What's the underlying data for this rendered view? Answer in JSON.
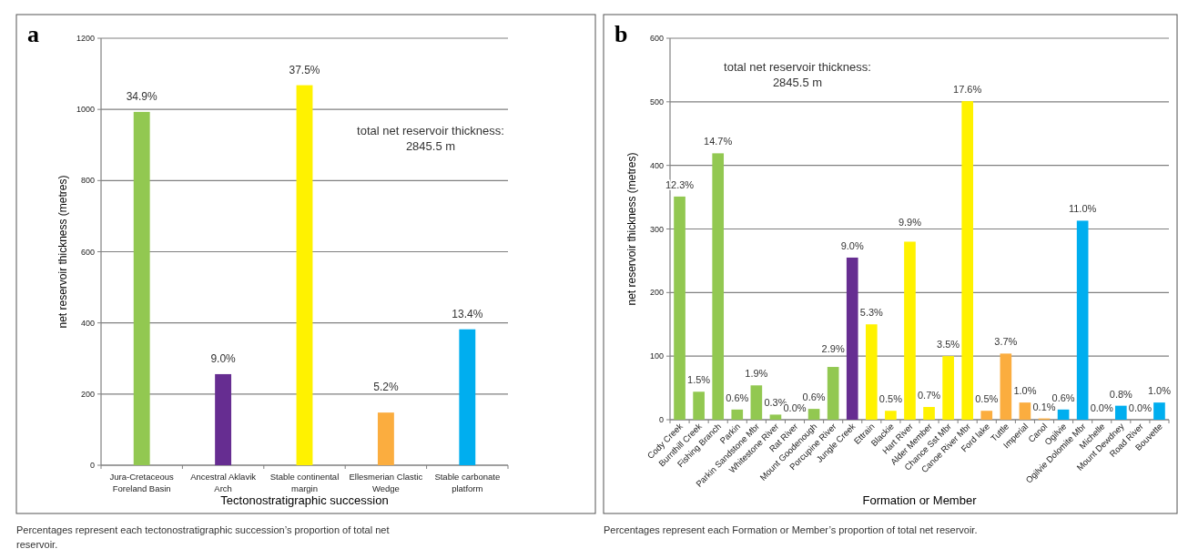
{
  "chart_data": [
    {
      "type": "bar",
      "title": "a",
      "xlabel": "Tectonostratigraphic succession",
      "ylabel": "net reservoir thickness (metres)",
      "categories": [
        "Jura-Cretaceous Foreland Basin",
        "Ancestral Aklavik Arch",
        "Stable continental margin",
        "Ellesmerian Clastic Wedge",
        "Stable carbonate platform"
      ],
      "values": [
        993,
        256,
        1068,
        148,
        382
      ],
      "colors": [
        "#92c851",
        "#662d91",
        "#fff200",
        "#fbad3f",
        "#00aeef"
      ],
      "ylim": [
        0,
        1200
      ],
      "yticks": [
        0,
        200,
        400,
        600,
        800,
        1000,
        1200
      ],
      "grid": "y",
      "annotations": [
        "total net reservoir thickness:\n2845.5 m",
        "Percentages represent each tectonostratigraphic succession’s proportion of total net reservoir.",
        {
          "text": "34.9%",
          "x": "Jura-Cretaceous Foreland Basin",
          "y": 993
        },
        {
          "text": "9.0%",
          "x": "Ancestral Aklavik Arch",
          "y": 256
        },
        {
          "text": "37.5%",
          "x": "Stable continental margin",
          "y": 1068
        },
        {
          "text": "5.2%",
          "x": "Ellesmerian Clastic Wedge",
          "y": 148
        },
        {
          "text": "13.4%",
          "x": "Stable carbonate platform",
          "y": 382
        }
      ]
    },
    {
      "type": "bar",
      "title": "b",
      "xlabel": "Formation or Member",
      "ylabel": "net reservoir thickness (metres)",
      "categories": [
        "Cody Creek",
        "Burnthill Creek",
        "Fishing Branch",
        "Parkin",
        "Parkin Sandstone Mbr",
        "Whitestone River",
        "Rat River",
        "Mount Goodenough",
        "Porcupine River",
        "Jungle Creek",
        "Ettrain",
        "Blackie",
        "Hart River",
        "Alder Member",
        "Chance Sst Mbr",
        "Canoe River Mbr",
        "Ford lake",
        "Tuttle",
        "Imperial",
        "Canol",
        "Ogilvie",
        "Ogilvie Dolomite Mbr",
        "Michelle",
        "Mount Dewdney",
        "Road River",
        "Bouvette"
      ],
      "values": [
        351,
        44,
        419,
        16,
        54,
        8,
        0,
        17,
        83,
        255,
        150,
        14,
        280,
        20,
        100,
        501,
        14,
        104,
        27,
        2,
        16,
        313,
        0,
        22,
        0,
        27
      ],
      "colors": [
        "#92c851",
        "#92c851",
        "#92c851",
        "#92c851",
        "#92c851",
        "#92c851",
        "#92c851",
        "#92c851",
        "#92c851",
        "#662d91",
        "#fff200",
        "#fff200",
        "#fff200",
        "#fff200",
        "#fff200",
        "#fff200",
        "#fbad3f",
        "#fbad3f",
        "#fbad3f",
        "#fbad3f",
        "#00aeef",
        "#00aeef",
        "#00aeef",
        "#00aeef",
        "#00aeef",
        "#00aeef"
      ],
      "ylim": [
        0,
        600
      ],
      "yticks": [
        0,
        100,
        200,
        300,
        400,
        500,
        600
      ],
      "grid": "y",
      "annotations": [
        "total net reservoir thickness:\n2845.5 m",
        "Percentages represent each Formation or Member’s proportion of total net reservoir.",
        {
          "text": "12.3%",
          "x": "Cody Creek",
          "y": 351
        },
        {
          "text": "1.5%",
          "x": "Burnthill Creek",
          "y": 44
        },
        {
          "text": "14.7%",
          "x": "Fishing Branch",
          "y": 419
        },
        {
          "text": "0.6%",
          "x": "Parkin",
          "y": 16
        },
        {
          "text": "1.9%",
          "x": "Parkin Sandstone Mbr",
          "y": 54
        },
        {
          "text": "0.3%",
          "x": "Whitestone River",
          "y": 8
        },
        {
          "text": "0.0%",
          "x": "Rat River",
          "y": 0
        },
        {
          "text": "0.6%",
          "x": "Mount Goodenough",
          "y": 17
        },
        {
          "text": "2.9%",
          "x": "Porcupine River",
          "y": 83
        },
        {
          "text": "9.0%",
          "x": "Jungle Creek",
          "y": 255
        },
        {
          "text": "5.3%",
          "x": "Ettrain",
          "y": 150
        },
        {
          "text": "0.5%",
          "x": "Blackie",
          "y": 14
        },
        {
          "text": "9.9%",
          "x": "Hart River",
          "y": 280
        },
        {
          "text": "0.7%",
          "x": "Alder Member",
          "y": 20
        },
        {
          "text": "3.5%",
          "x": "Chance Sst Mbr",
          "y": 100
        },
        {
          "text": "17.6%",
          "x": "Canoe River Mbr",
          "y": 501
        },
        {
          "text": "0.5%",
          "x": "Ford lake",
          "y": 14
        },
        {
          "text": "3.7%",
          "x": "Tuttle",
          "y": 104
        },
        {
          "text": "1.0%",
          "x": "Imperial",
          "y": 27
        },
        {
          "text": "0.1%",
          "x": "Canol",
          "y": 2
        },
        {
          "text": "0.6%",
          "x": "Ogilvie",
          "y": 16
        },
        {
          "text": "11.0%",
          "x": "Ogilvie Dolomite Mbr",
          "y": 313
        },
        {
          "text": "0.0%",
          "x": "Michelle",
          "y": 0
        },
        {
          "text": "0.8%",
          "x": "Mount Dewdney",
          "y": 22
        },
        {
          "text": "0.0%",
          "x": "Road River",
          "y": 0
        },
        {
          "text": "1.0%",
          "x": "Bouvette",
          "y": 27
        }
      ]
    }
  ]
}
